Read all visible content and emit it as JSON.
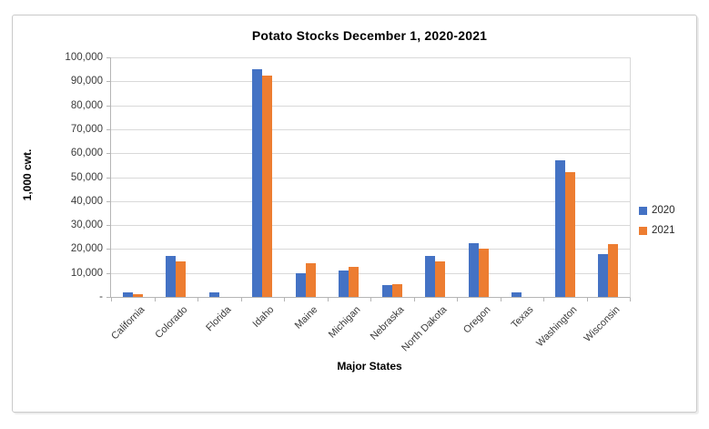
{
  "chart_data": {
    "type": "bar",
    "title": "Potato Stocks December 1, 2020-2021",
    "xlabel": "Major States",
    "ylabel": "1,000 cwt.",
    "categories": [
      "California",
      "Colorado",
      "Florida",
      "Idaho",
      "Maine",
      "Michigan",
      "Nebraska",
      "North Dakota",
      "Oregon",
      "Texas",
      "Washington",
      "Wisconsin"
    ],
    "series": [
      {
        "name": "2020",
        "color": "#4472C4",
        "values": [
          2000,
          17000,
          2000,
          95000,
          10000,
          11000,
          5000,
          17000,
          22500,
          2000,
          57000,
          18000
        ]
      },
      {
        "name": "2021",
        "color": "#ED7D31",
        "values": [
          1200,
          15000,
          0,
          92500,
          14000,
          12500,
          5500,
          15000,
          20000,
          0,
          52000,
          22000
        ]
      }
    ],
    "ylim": [
      0,
      100000
    ],
    "ytick_step": 10000,
    "zero_tick_label": "-",
    "grid": true,
    "legend_position": "right",
    "colors": {
      "bar_2020": "#4472C4",
      "bar_2021": "#ED7D31",
      "gridline": "#d9d9d9",
      "axis_line": "#b5b5b5",
      "text": "#3b3b3b"
    }
  }
}
